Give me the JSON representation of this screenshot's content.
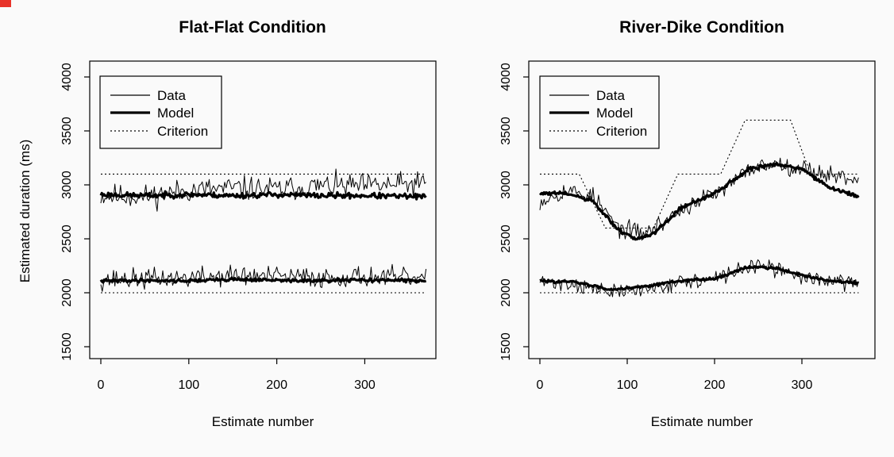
{
  "accent_color": "#e8332a",
  "chart_data": [
    {
      "type": "line",
      "title": "Flat-Flat Condition",
      "xlabel": "Estimate number",
      "ylabel": "Estimated duration (ms)",
      "xlim": [
        0,
        370
      ],
      "ylim": [
        1500,
        4000
      ],
      "xticks": [
        0,
        100,
        200,
        300
      ],
      "yticks": [
        1500,
        2000,
        2500,
        3000,
        3500,
        4000
      ],
      "legend": {
        "position": "top-left",
        "entries": [
          "Data",
          "Model",
          "Criterion"
        ]
      },
      "series": [
        {
          "name": "Data",
          "group": "long",
          "style": "thin",
          "noise": 110,
          "seed": 11,
          "x": [
            0,
            50,
            100,
            150,
            200,
            250,
            300,
            370
          ],
          "y": [
            2900,
            2890,
            2950,
            2970,
            2960,
            2990,
            2990,
            3010
          ]
        },
        {
          "name": "Model",
          "group": "long",
          "style": "thick",
          "noise": 25,
          "seed": 23,
          "x": [
            0,
            50,
            100,
            150,
            200,
            250,
            300,
            370
          ],
          "y": [
            2910,
            2900,
            2910,
            2900,
            2910,
            2900,
            2900,
            2890
          ]
        },
        {
          "name": "Criterion",
          "group": "long",
          "style": "dotted",
          "x": [
            0,
            370
          ],
          "y": [
            3100,
            3100
          ]
        },
        {
          "name": "Data",
          "group": "short",
          "style": "thin",
          "noise": 95,
          "seed": 37,
          "x": [
            0,
            50,
            100,
            150,
            200,
            250,
            300,
            370
          ],
          "y": [
            2120,
            2130,
            2140,
            2160,
            2150,
            2140,
            2150,
            2130
          ]
        },
        {
          "name": "Model",
          "group": "short",
          "style": "thick",
          "noise": 15,
          "seed": 41,
          "x": [
            0,
            50,
            100,
            150,
            200,
            250,
            300,
            370
          ],
          "y": [
            2110,
            2115,
            2110,
            2125,
            2115,
            2110,
            2120,
            2110
          ]
        },
        {
          "name": "Criterion",
          "group": "short",
          "style": "dotted",
          "x": [
            0,
            370
          ],
          "y": [
            2000,
            2000
          ]
        }
      ]
    },
    {
      "type": "line",
      "title": "River-Dike Condition",
      "xlabel": "Estimate number",
      "ylabel": "",
      "xlim": [
        0,
        370
      ],
      "ylim": [
        1500,
        4000
      ],
      "xticks": [
        0,
        100,
        200,
        300
      ],
      "yticks": [
        1500,
        2000,
        2500,
        3000,
        3500,
        4000
      ],
      "legend": {
        "position": "top-left",
        "entries": [
          "Data",
          "Model",
          "Criterion"
        ]
      },
      "series": [
        {
          "name": "Data",
          "group": "long",
          "style": "thin",
          "noise": 80,
          "seed": 53,
          "x": [
            0,
            30,
            60,
            90,
            120,
            150,
            180,
            210,
            240,
            270,
            300,
            330,
            365
          ],
          "y": [
            2850,
            2950,
            2900,
            2600,
            2550,
            2700,
            2850,
            2950,
            3150,
            3200,
            3150,
            3100,
            3050
          ]
        },
        {
          "name": "Model",
          "group": "long",
          "style": "thick",
          "noise": 18,
          "seed": 61,
          "x": [
            0,
            30,
            60,
            90,
            110,
            130,
            160,
            200,
            240,
            270,
            300,
            330,
            365
          ],
          "y": [
            2920,
            2920,
            2850,
            2580,
            2500,
            2540,
            2780,
            2920,
            3150,
            3190,
            3150,
            2980,
            2890
          ]
        },
        {
          "name": "Criterion",
          "group": "long",
          "style": "dotted",
          "x": [
            0,
            45,
            75,
            130,
            158,
            207,
            235,
            287,
            310,
            365
          ],
          "y": [
            3100,
            3100,
            2600,
            2600,
            3100,
            3100,
            3600,
            3600,
            3100,
            3100
          ]
        },
        {
          "name": "Data",
          "group": "short",
          "style": "thin",
          "noise": 70,
          "seed": 71,
          "x": [
            0,
            40,
            80,
            120,
            160,
            200,
            240,
            270,
            300,
            330,
            365
          ],
          "y": [
            2100,
            2080,
            2000,
            2030,
            2100,
            2120,
            2250,
            2220,
            2150,
            2110,
            2090
          ]
        },
        {
          "name": "Model",
          "group": "short",
          "style": "thick",
          "noise": 12,
          "seed": 83,
          "x": [
            0,
            40,
            80,
            120,
            160,
            200,
            240,
            270,
            300,
            330,
            365
          ],
          "y": [
            2110,
            2100,
            2030,
            2060,
            2110,
            2130,
            2240,
            2230,
            2160,
            2110,
            2090
          ]
        },
        {
          "name": "Criterion",
          "group": "short",
          "style": "dotted",
          "x": [
            0,
            365
          ],
          "y": [
            2000,
            2000
          ]
        }
      ]
    }
  ]
}
